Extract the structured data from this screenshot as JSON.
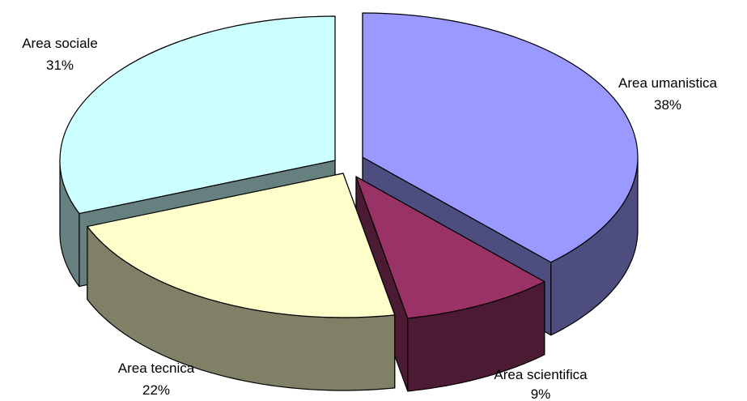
{
  "chart_data": {
    "type": "pie",
    "style": "3d-exploded",
    "slices": [
      {
        "name": "Area umanistica",
        "pct_label": "38%",
        "value": 38,
        "color": "#9999FF",
        "side_color": "#4D4D80"
      },
      {
        "name": "Area scientifica",
        "pct_label": "9%",
        "value": 9,
        "color": "#993366",
        "side_color": "#4D1A33"
      },
      {
        "name": "Area tecnica",
        "pct_label": "22%",
        "value": 22,
        "color": "#FFFFCC",
        "side_color": "#808066"
      },
      {
        "name": "Area sociale",
        "pct_label": "31%",
        "value": 31,
        "color": "#CCFFFF",
        "side_color": "#668080"
      }
    ]
  }
}
